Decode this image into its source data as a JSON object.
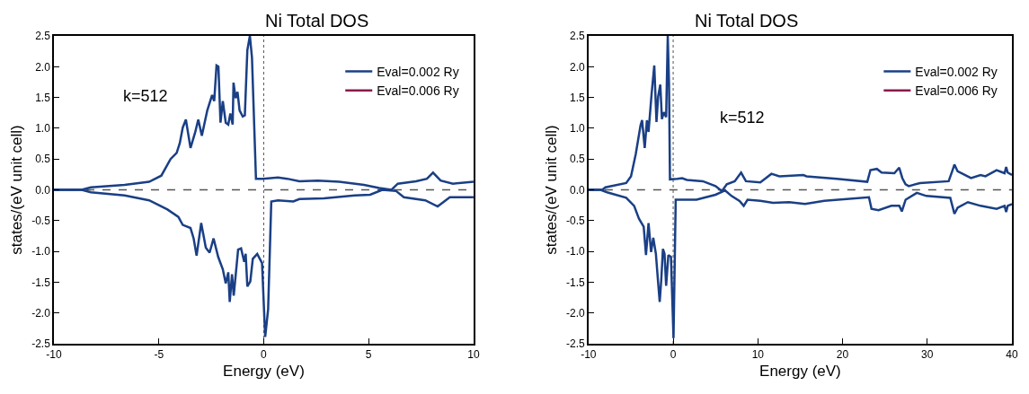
{
  "chart_data": [
    {
      "type": "line",
      "title": "Ni Total DOS",
      "xlabel": "Energy (eV)",
      "ylabel": "states/(eV unit cell)",
      "annotations": [
        "k=512"
      ],
      "xlim": [
        -10,
        10
      ],
      "xticks": [
        -10,
        -5,
        0,
        5,
        10
      ],
      "ylim": [
        -2.5,
        2.5
      ],
      "yticks": [
        {
          "value": -2.5,
          "label": "-2.5"
        },
        {
          "value": -2,
          "label": "-2.0"
        },
        {
          "value": -1.5,
          "label": "-1.5"
        },
        {
          "value": -1,
          "label": "-1.0"
        },
        {
          "value": -0.5,
          "label": "-0.5"
        },
        {
          "value": 0,
          "label": "0.0"
        },
        {
          "value": 0.5,
          "label": "0.5"
        },
        {
          "value": 1,
          "label": "1.0"
        },
        {
          "value": 1.5,
          "label": "1.5"
        },
        {
          "value": 2,
          "label": "2.0"
        },
        {
          "value": 2.5,
          "label": "2.5"
        }
      ],
      "grid": false,
      "legend": "top right",
      "marker": "none",
      "line_style": "solid",
      "ref_lines": [
        {
          "axis": "y",
          "value": 0,
          "color": "#555555",
          "line_style": "dashed"
        },
        {
          "axis": "x",
          "value": 0,
          "color": "#555555",
          "line_style": "dotted"
        }
      ],
      "series": [
        {
          "name": "Eval=0.002 Ry",
          "color": "#1a3f85",
          "x": [
            -10,
            -8.68,
            -8.24,
            -6.63,
            -5.46,
            -4.88,
            -4.44,
            -4.15,
            -4.0,
            -3.86,
            -3.71,
            -3.49,
            -3.27,
            -3.12,
            -2.95,
            -2.69,
            -2.46,
            -2.36,
            -2.25,
            -2.16,
            -2.06,
            -1.95,
            -1.81,
            -1.69,
            -1.59,
            -1.48,
            -1.44,
            -1.34,
            -1.25,
            -1.15,
            -1.0,
            -0.9,
            -0.78,
            -0.66,
            -0.56,
            -0.37,
            -0.04,
            0.68,
            1.12,
            1.7,
            2.58,
            3.6,
            4.78,
            5.51,
            6.09,
            6.39,
            7.26,
            7.78,
            8.07,
            8.43,
            9.02,
            10
          ],
          "values": [
            0,
            0,
            0.04,
            0.08,
            0.13,
            0.23,
            0.5,
            0.6,
            0.76,
            1.01,
            1.14,
            0.68,
            0.93,
            1.14,
            0.88,
            1.29,
            1.54,
            1.44,
            2.02,
            2.0,
            1.09,
            1.44,
            1.09,
            1.06,
            1.24,
            1.06,
            1.74,
            1.49,
            1.59,
            1.29,
            1.19,
            1.21,
            2.27,
            2.5,
            2.15,
            0.18,
            0.18,
            0.2,
            0.18,
            0.14,
            0.15,
            0.13,
            0.08,
            0.03,
            0.0,
            0.1,
            0.14,
            0.18,
            0.28,
            0.15,
            0.1,
            0.13
          ]
        },
        {
          "color": "#1a3f85",
          "x": [
            -10,
            -8.68,
            -8.24,
            -6.63,
            -5.46,
            -4.59,
            -4.07,
            -3.86,
            -3.49,
            -3.34,
            -3.2,
            -2.98,
            -2.76,
            -2.58,
            -2.39,
            -2.17,
            -1.95,
            -1.81,
            -1.69,
            -1.62,
            -1.51,
            -1.43,
            -1.22,
            -1.08,
            -0.93,
            -0.86,
            -0.78,
            -0.64,
            -0.52,
            -0.31,
            -0.08,
            0.07,
            0.21,
            0.36,
            0.68,
            1.41,
            1.7,
            2.87,
            4.34,
            5.07,
            5.65,
            6.31,
            6.68,
            7.7,
            8.29,
            8.87,
            10
          ],
          "values": [
            0,
            0,
            -0.04,
            -0.09,
            -0.17,
            -0.32,
            -0.44,
            -0.57,
            -0.62,
            -0.79,
            -1.07,
            -0.54,
            -0.94,
            -1.02,
            -0.79,
            -1.09,
            -1.29,
            -1.52,
            -1.34,
            -1.82,
            -1.37,
            -1.72,
            -0.97,
            -0.95,
            -1.17,
            -1.04,
            -1.57,
            -1.49,
            -1.12,
            -1.04,
            -1.19,
            -2.39,
            -1.94,
            -0.19,
            -0.17,
            -0.19,
            -0.15,
            -0.14,
            -0.09,
            -0.08,
            0.0,
            -0.02,
            -0.12,
            -0.17,
            -0.27,
            -0.12,
            -0.12
          ]
        },
        {
          "name": "Eval=0.006 Ry",
          "color": "#8b1a4a",
          "values": [
            null,
            null
          ]
        }
      ]
    },
    {
      "type": "line",
      "title": "Ni Total DOS",
      "xlabel": "Energy (eV)",
      "ylabel": "states/(eV unit cell)",
      "annotations": [
        "k=512"
      ],
      "xlim": [
        -10,
        40
      ],
      "xticks": [
        -10,
        0,
        10,
        20,
        30,
        40
      ],
      "ylim": [
        -2.5,
        2.5
      ],
      "yticks": [
        {
          "value": -2.5,
          "label": "-2.5"
        },
        {
          "value": -2,
          "label": "-2.0"
        },
        {
          "value": -1.5,
          "label": "-1.5"
        },
        {
          "value": -1,
          "label": "-1.0"
        },
        {
          "value": -0.5,
          "label": "-0.5"
        },
        {
          "value": 0,
          "label": "0.0"
        },
        {
          "value": 0.5,
          "label": "0.5"
        },
        {
          "value": 1,
          "label": "1.0"
        },
        {
          "value": 1.5,
          "label": "1.5"
        },
        {
          "value": 2,
          "label": "2.0"
        },
        {
          "value": 2.5,
          "label": "2.5"
        }
      ],
      "grid": false,
      "legend": "top right",
      "marker": "none",
      "line_style": "solid",
      "ref_lines": [
        {
          "axis": "y",
          "value": 0,
          "color": "#555555",
          "line_style": "dashed"
        },
        {
          "axis": "x",
          "value": 0,
          "color": "#555555",
          "line_style": "dotted"
        }
      ],
      "series": [
        {
          "name": "Eval=0.002 Ry",
          "color": "#1a3f85",
          "x": [
            -10,
            -8.38,
            -8.0,
            -5.55,
            -4.98,
            -4.42,
            -3.85,
            -3.67,
            -3.36,
            -3.1,
            -2.91,
            -2.54,
            -2.23,
            -1.97,
            -1.78,
            -1.52,
            -1.33,
            -1.1,
            -0.83,
            -0.64,
            -0.49,
            -0.38,
            0.49,
            1.06,
            1.62,
            3.5,
            5.0,
            5.76,
            6.33,
            7.27,
            8.02,
            8.59,
            10.29,
            11.6,
            12.54,
            15.37,
            15.75,
            19.33,
            22.92,
            23.29,
            24.05,
            24.61,
            26.12,
            26.69,
            27.06,
            27.44,
            27.82,
            29.14,
            32.53,
            32.99,
            33.21,
            33.59,
            35.17,
            36.3,
            36.87,
            38.19,
            39.13,
            39.32,
            39.5,
            40
          ],
          "values": [
            0,
            0,
            0.04,
            0.11,
            0.22,
            0.58,
            1.05,
            1.13,
            0.68,
            1.13,
            0.94,
            1.57,
            2.02,
            1.1,
            1.51,
            1.71,
            1.15,
            1.26,
            1.18,
            2.5,
            1.72,
            0.17,
            0.18,
            0.19,
            0.16,
            0.14,
            0.06,
            -0.02,
            0.09,
            0.14,
            0.28,
            0.14,
            0.12,
            0.26,
            0.22,
            0.24,
            0.22,
            0.18,
            0.13,
            0.32,
            0.34,
            0.28,
            0.27,
            0.36,
            0.19,
            0.09,
            0.06,
            0.11,
            0.14,
            0.32,
            0.41,
            0.3,
            0.19,
            0.24,
            0.22,
            0.32,
            0.27,
            0.37,
            0.28,
            0.24
          ]
        },
        {
          "color": "#1a3f85",
          "x": [
            -10,
            -8.57,
            -7.81,
            -5.55,
            -4.61,
            -4.04,
            -3.48,
            -3.21,
            -2.91,
            -2.61,
            -2.35,
            -2.04,
            -1.78,
            -1.59,
            -1.4,
            -1.21,
            -1.02,
            -0.83,
            -0.57,
            -0.26,
            0.04,
            0.3,
            1.24,
            2.75,
            5.0,
            6.14,
            6.89,
            7.84,
            8.33,
            8.78,
            10.29,
            11.8,
            13.69,
            15.57,
            17.84,
            23.12,
            23.42,
            24.25,
            25.76,
            26.7,
            27.0,
            27.45,
            28.77,
            29.9,
            32.72,
            33.21,
            33.59,
            34.8,
            36.3,
            38.19,
            39.13,
            39.32,
            39.5,
            40
          ],
          "values": [
            0,
            0,
            -0.04,
            -0.13,
            -0.26,
            -0.47,
            -0.6,
            -1.06,
            -0.54,
            -1.01,
            -0.78,
            -1.04,
            -1.5,
            -1.82,
            -1.45,
            -0.96,
            -1.04,
            -1.56,
            -1.06,
            -1.09,
            -2.41,
            -0.16,
            -0.16,
            -0.16,
            -0.08,
            -0.01,
            -0.1,
            -0.18,
            -0.26,
            -0.16,
            -0.18,
            -0.21,
            -0.2,
            -0.23,
            -0.18,
            -0.12,
            -0.31,
            -0.33,
            -0.26,
            -0.26,
            -0.35,
            -0.16,
            -0.05,
            -0.1,
            -0.13,
            -0.39,
            -0.29,
            -0.2,
            -0.26,
            -0.31,
            -0.26,
            -0.36,
            -0.26,
            -0.23
          ]
        },
        {
          "name": "Eval=0.006 Ry",
          "color": "#8b1a4a",
          "values": [
            null,
            null
          ]
        }
      ]
    }
  ]
}
